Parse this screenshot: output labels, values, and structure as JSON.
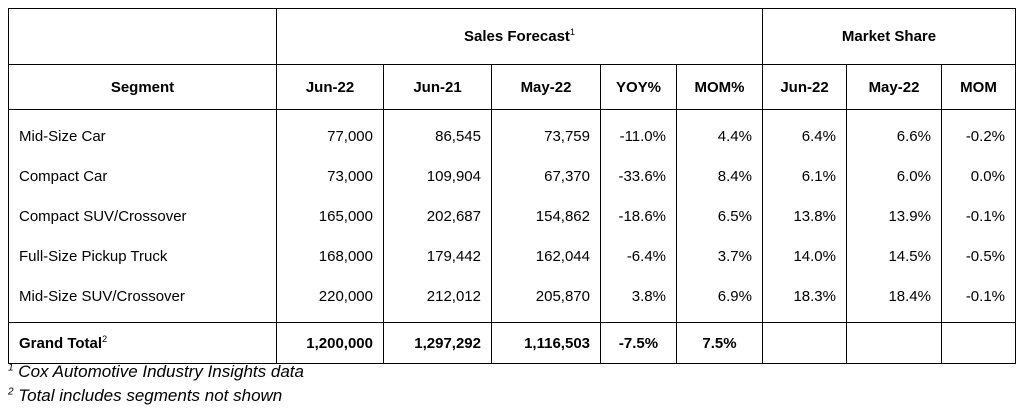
{
  "groups": {
    "sales_forecast": "Sales Forecast",
    "sales_forecast_ref": "1",
    "market_share": "Market Share"
  },
  "columns": [
    "Segment",
    "Jun-22",
    "Jun-21",
    "May-22",
    "YOY%",
    "MOM%",
    "Jun-22",
    "May-22",
    "MOM"
  ],
  "rows": [
    [
      "Mid-Size Car",
      "77,000",
      "86,545",
      "73,759",
      "-11.0%",
      "4.4%",
      "6.4%",
      "6.6%",
      "-0.2%"
    ],
    [
      "Compact Car",
      "73,000",
      "109,904",
      "67,370",
      "-33.6%",
      "8.4%",
      "6.1%",
      "6.0%",
      "0.0%"
    ],
    [
      "Compact SUV/Crossover",
      "165,000",
      "202,687",
      "154,862",
      "-18.6%",
      "6.5%",
      "13.8%",
      "13.9%",
      "-0.1%"
    ],
    [
      "Full-Size Pickup Truck",
      "168,000",
      "179,442",
      "162,044",
      "-6.4%",
      "3.7%",
      "14.0%",
      "14.5%",
      "-0.5%"
    ],
    [
      "Mid-Size SUV/Crossover",
      "220,000",
      "212,012",
      "205,870",
      "3.8%",
      "6.9%",
      "18.3%",
      "18.4%",
      "-0.1%"
    ]
  ],
  "total": {
    "label": "Grand Total",
    "ref": "2",
    "values": [
      "1,200,000",
      "1,297,292",
      "1,116,503",
      "-7.5%",
      "7.5%",
      "",
      "",
      ""
    ]
  },
  "notes": [
    {
      "ref": "1",
      "text": " Cox Automotive Industry Insights data"
    },
    {
      "ref": "2",
      "text": " Total includes segments not shown"
    }
  ]
}
